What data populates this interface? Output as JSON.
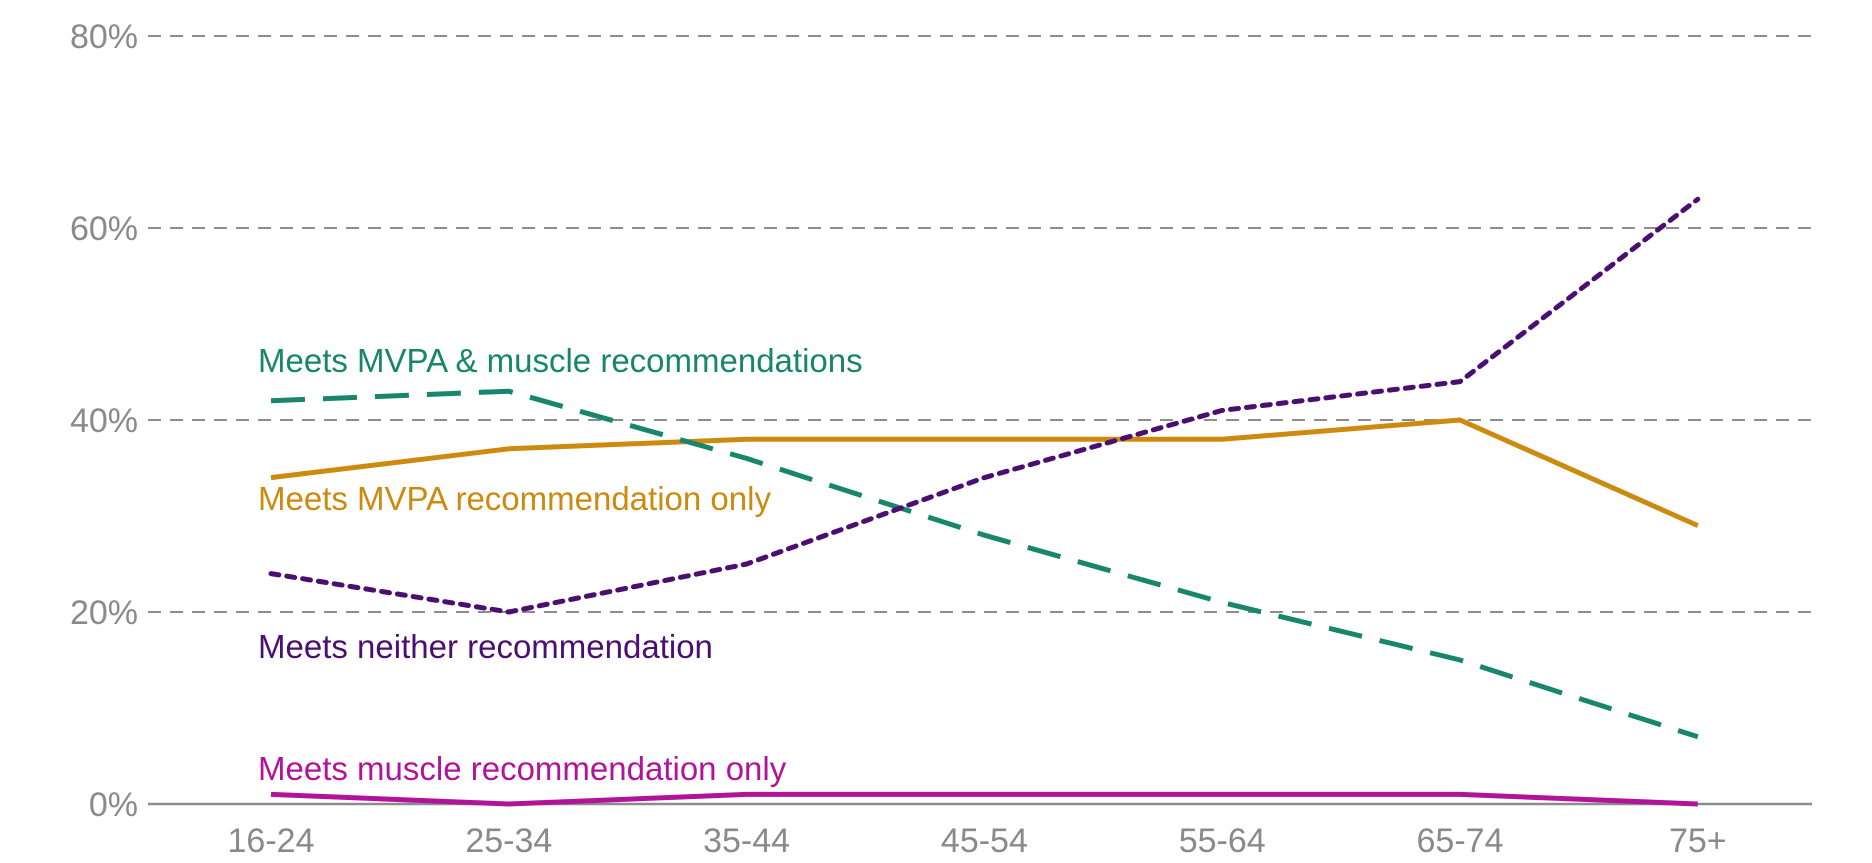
{
  "chart_data": {
    "type": "line",
    "categories": [
      "16-24",
      "25-34",
      "35-44",
      "45-54",
      "55-64",
      "65-74",
      "75+"
    ],
    "y_ticks": [
      "0%",
      "20%",
      "40%",
      "60%",
      "80%"
    ],
    "ylim": [
      0,
      80
    ],
    "grid": true,
    "series": [
      {
        "name": "Meets MVPA & muscle recommendations",
        "color": "#17866a",
        "style": "dashed",
        "values": [
          42,
          43,
          36,
          28,
          21,
          15,
          7
        ]
      },
      {
        "name": "Meets MVPA recommendation only",
        "color": "#cc8a0e",
        "style": "solid",
        "values": [
          34,
          37,
          38,
          38,
          38,
          40,
          29
        ]
      },
      {
        "name": "Meets neither recommendation",
        "color": "#4b0f72",
        "style": "dotted",
        "values": [
          24,
          20,
          25,
          34,
          41,
          44,
          63
        ]
      },
      {
        "name": "Meets muscle recommendation only",
        "color": "#b2139a",
        "style": "solid",
        "values": [
          1,
          0,
          1,
          1,
          1,
          1,
          0
        ]
      }
    ]
  }
}
